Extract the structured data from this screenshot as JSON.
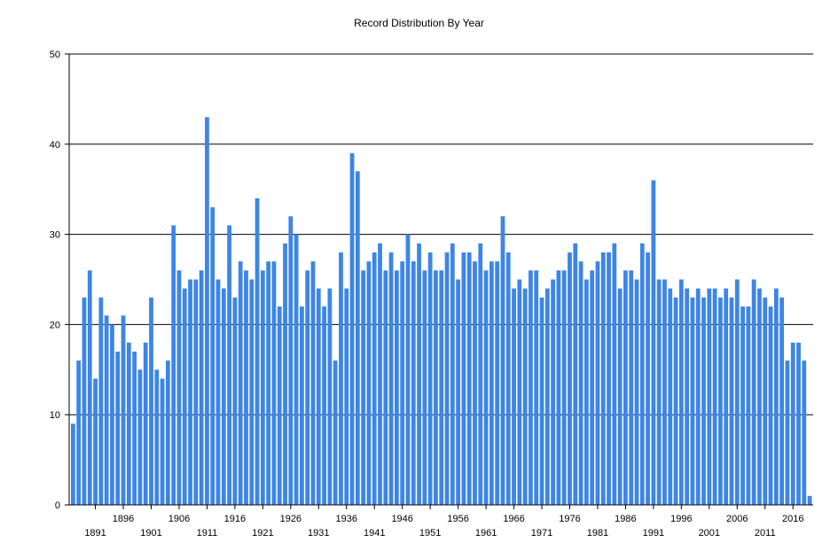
{
  "chart_data": {
    "type": "bar",
    "title": "Record Distribution By Year",
    "xlabel": "",
    "ylabel": "",
    "ylim": [
      0,
      50
    ],
    "yticks": [
      0,
      10,
      20,
      30,
      40,
      50
    ],
    "grid": true,
    "bar_color": "#3d85e6",
    "x_tick_labels_row1": [
      "1896",
      "1906",
      "1916",
      "1926",
      "1936",
      "1946",
      "1956",
      "1966",
      "1976",
      "1986",
      "1996",
      "2006",
      "2016"
    ],
    "x_tick_labels_row2": [
      "1891",
      "1901",
      "1911",
      "1921",
      "1931",
      "1941",
      "1951",
      "1961",
      "1971",
      "1981",
      "1991",
      "2001",
      "2011"
    ],
    "categories": [
      1887,
      1888,
      1889,
      1890,
      1891,
      1892,
      1893,
      1894,
      1895,
      1896,
      1897,
      1898,
      1899,
      1900,
      1901,
      1902,
      1903,
      1904,
      1905,
      1906,
      1907,
      1908,
      1909,
      1910,
      1911,
      1912,
      1913,
      1914,
      1915,
      1916,
      1917,
      1918,
      1919,
      1920,
      1921,
      1922,
      1923,
      1924,
      1925,
      1926,
      1927,
      1928,
      1929,
      1930,
      1931,
      1932,
      1933,
      1934,
      1935,
      1936,
      1937,
      1938,
      1939,
      1940,
      1941,
      1942,
      1943,
      1944,
      1945,
      1946,
      1947,
      1948,
      1949,
      1950,
      1951,
      1952,
      1953,
      1954,
      1955,
      1956,
      1957,
      1958,
      1959,
      1960,
      1961,
      1962,
      1963,
      1964,
      1965,
      1966,
      1967,
      1968,
      1969,
      1970,
      1971,
      1972,
      1973,
      1974,
      1975,
      1976,
      1977,
      1978,
      1979,
      1980,
      1981,
      1982,
      1983,
      1984,
      1985,
      1986,
      1987,
      1988,
      1989,
      1990,
      1991,
      1992,
      1993,
      1994,
      1995,
      1996,
      1997,
      1998,
      1999,
      2000,
      2001,
      2002,
      2003,
      2004,
      2005,
      2006,
      2007,
      2008,
      2009,
      2010,
      2011,
      2012,
      2013,
      2014,
      2015,
      2016,
      2017,
      2018,
      2019
    ],
    "values": [
      9,
      16,
      23,
      26,
      14,
      23,
      21,
      20,
      17,
      21,
      18,
      17,
      15,
      18,
      23,
      15,
      14,
      16,
      31,
      26,
      24,
      25,
      25,
      26,
      43,
      33,
      25,
      24,
      31,
      23,
      27,
      26,
      25,
      34,
      26,
      27,
      27,
      22,
      29,
      32,
      30,
      22,
      26,
      27,
      24,
      22,
      24,
      16,
      28,
      24,
      39,
      37,
      26,
      27,
      28,
      29,
      26,
      28,
      26,
      27,
      30,
      27,
      29,
      26,
      28,
      26,
      26,
      28,
      29,
      25,
      28,
      28,
      27,
      29,
      26,
      27,
      27,
      32,
      28,
      24,
      25,
      24,
      26,
      26,
      23,
      24,
      25,
      26,
      26,
      28,
      29,
      27,
      25,
      26,
      27,
      28,
      28,
      29,
      24,
      26,
      26,
      25,
      29,
      28,
      36,
      25,
      25,
      24,
      23,
      25,
      24,
      23,
      24,
      23,
      24,
      24,
      23,
      24,
      23,
      25,
      22,
      22,
      25,
      24,
      23,
      22,
      24,
      23,
      16,
      18,
      18,
      16,
      1
    ]
  }
}
